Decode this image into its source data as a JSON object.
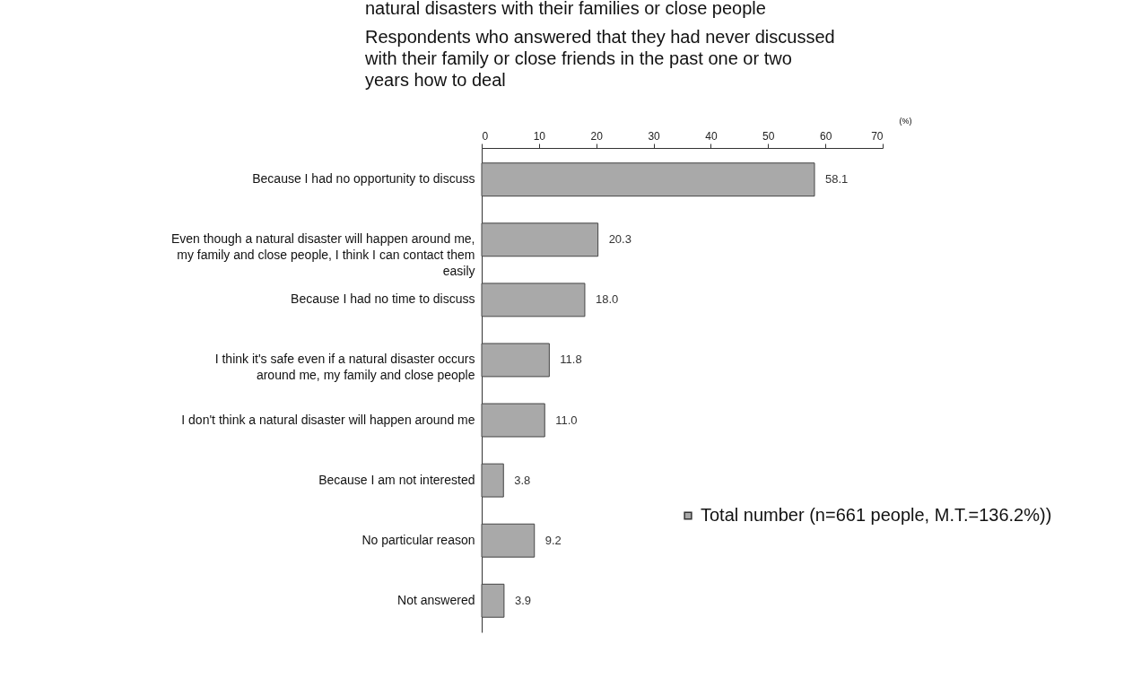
{
  "chart_data": {
    "type": "bar",
    "orientation": "horizontal",
    "title": "natural disasters with their families or close people",
    "subtitle": "Respondents who answered that they had never discussed with their family or close friends in the past one or two years how to deal",
    "xlabel": "(%)",
    "categories": [
      "Because I had no opportunity to discuss",
      "Even though a natural disaster will happen around me, my family and close people, I think I can contact them easily",
      "Because I had no time to discuss",
      "I think it's safe even if a natural disaster occurs around me, my family and close people",
      "I don't think a natural disaster will happen around me",
      "Because I am not interested",
      "No particular reason",
      "Not answered"
    ],
    "series": [
      {
        "name": "Total number (n=661 people, M.T.=136.2%))",
        "color": "#a9a9a9",
        "values": [
          58.1,
          20.3,
          18.0,
          11.8,
          11.0,
          3.8,
          9.2,
          3.9
        ],
        "value_labels": [
          "58.1",
          "20.3",
          "18.0",
          "11.8",
          "11.0",
          "3.8",
          "9.2",
          "3.9"
        ]
      }
    ],
    "xlim": [
      0,
      70
    ],
    "xticks": [
      0,
      10,
      20,
      30,
      40,
      50,
      60,
      70
    ],
    "grid": false,
    "legend": "right"
  }
}
